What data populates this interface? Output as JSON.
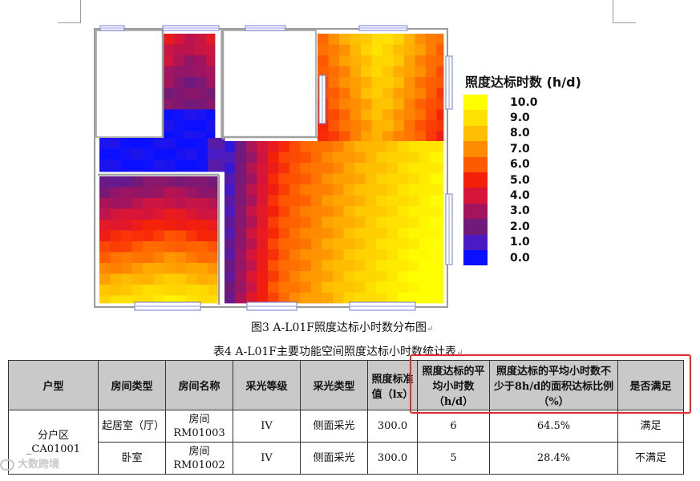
{
  "legend": {
    "title": "照度达标时数 (h/d)",
    "items": [
      {
        "label": "10.0",
        "color": "#ffff00"
      },
      {
        "label": "9.0",
        "color": "#ffe100"
      },
      {
        "label": "8.0",
        "color": "#ffbf00"
      },
      {
        "label": "7.0",
        "color": "#ff8c00"
      },
      {
        "label": "6.0",
        "color": "#ff5a00"
      },
      {
        "label": "5.0",
        "color": "#f5200a"
      },
      {
        "label": "4.0",
        "color": "#d81538"
      },
      {
        "label": "3.0",
        "color": "#a3145e"
      },
      {
        "label": "2.0",
        "color": "#701a7a"
      },
      {
        "label": "1.0",
        "color": "#4a1bc4"
      },
      {
        "label": "0.0",
        "color": "#0a10ff"
      }
    ]
  },
  "figure_caption": "图3 A-L01F照度达标小时数分布图",
  "table_caption": "表4 A-L01F主要功能空间照度达标小时数统计表",
  "mark": "↵",
  "table": {
    "headers": [
      "户型",
      "房间类型",
      "房间名称",
      "采光等级",
      "采光类型",
      "照度标准值（lx）",
      "照度达标的平均小时数（h/d）",
      "照度达标的平均小时数不少于8h/d的面积达标比例（%）",
      "是否满足"
    ],
    "group": "分户区_CA01001",
    "rows": [
      {
        "room_type": "起居室（厅）",
        "room_name": "房间RM01003",
        "level": "IV",
        "daylight_type": "侧面采光",
        "standard": "300.0",
        "avg_hours": "6",
        "ratio": "64.5%",
        "satisfied": "满足"
      },
      {
        "room_type": "卧室",
        "room_name": "房间RM01002",
        "level": "IV",
        "daylight_type": "侧面采光",
        "standard": "300.0",
        "avg_hours": "5",
        "ratio": "28.4%",
        "satisfied": "不满足"
      }
    ]
  },
  "watermark": "大数跨境"
}
